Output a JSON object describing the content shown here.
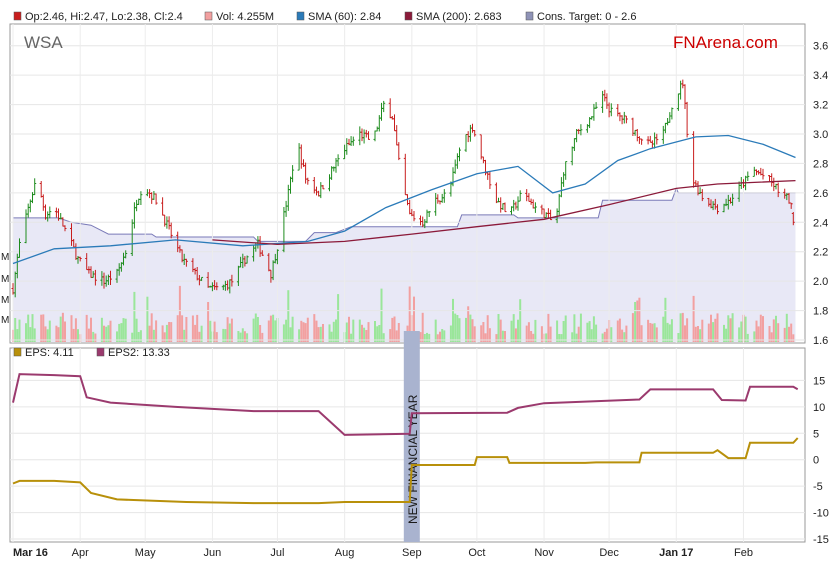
{
  "ticker": "WSA",
  "brand": "FNArena.com",
  "vertical_annotation": "NEW FINANCIAL YEAR",
  "colors": {
    "up": "#1e8c1e",
    "down": "#c81e1e",
    "sma60": "#2b7bb9",
    "sma200": "#8b1a3a",
    "target_fill": "#e8e8f6",
    "target_line": "#7a7ab8",
    "eps": "#b8900a",
    "eps2": "#9b3a6e",
    "brand": "#cc0000",
    "vol_up": "#9ae69a",
    "vol_down": "#f2a0a0",
    "nfy_band": "#a9b3cf"
  },
  "legend_top": [
    {
      "swatch": "#c81e1e",
      "text": "Op:2.46, Hi:2.47, Lo:2.38, Cl:2.4"
    },
    {
      "swatch": "#f2a0a0",
      "text": "Vol: 4.255M"
    },
    {
      "swatch": "#2b7bb9",
      "text": "SMA (60): 2.84"
    },
    {
      "swatch": "#8b1a3a",
      "text": "SMA (200): 2.683"
    },
    {
      "swatch": "#8f93b7",
      "text": "Cons. Target: 0 - 2.6"
    }
  ],
  "legend_bottom": [
    {
      "swatch": "#b8900a",
      "text": "EPS: 4.11"
    },
    {
      "swatch": "#9b3a6e",
      "text": "EPS2: 13.33"
    }
  ],
  "vol_axis_labels": [
    "M",
    "M",
    "M",
    "M"
  ],
  "chart_data": [
    {
      "type": "candlestick",
      "title": "WSA",
      "x_range": [
        "2016-03-01",
        "2017-02-28"
      ],
      "ylim": [
        1.6,
        3.7
      ],
      "y_ticks": [
        "1.6",
        "1.8",
        "2.0",
        "2.2",
        "2.4",
        "2.6",
        "2.8",
        "3.0",
        "3.2",
        "3.4",
        "3.6"
      ],
      "x_tick_labels": [
        "Mar 16",
        "Apr",
        "May",
        "Jun",
        "Jul",
        "Aug",
        "Sep",
        "Oct",
        "Nov",
        "Dec",
        "Jan 17",
        "Feb"
      ],
      "x_tick_dates": [
        "2016-03-01",
        "2016-04-01",
        "2016-05-01",
        "2016-06-01",
        "2016-07-01",
        "2016-08-01",
        "2016-09-01",
        "2016-10-01",
        "2016-11-01",
        "2016-12-01",
        "2017-01-01",
        "2017-02-01"
      ],
      "close_path": [
        [
          "2016-03-01",
          1.95
        ],
        [
          "2016-03-04",
          2.25
        ],
        [
          "2016-03-09",
          2.55
        ],
        [
          "2016-03-12",
          2.7
        ],
        [
          "2016-03-16",
          2.45
        ],
        [
          "2016-03-20",
          2.5
        ],
        [
          "2016-03-25",
          2.35
        ],
        [
          "2016-03-31",
          2.15
        ],
        [
          "2016-04-05",
          2.05
        ],
        [
          "2016-04-12",
          2.0
        ],
        [
          "2016-04-18",
          2.05
        ],
        [
          "2016-04-22",
          2.2
        ],
        [
          "2016-04-27",
          2.55
        ],
        [
          "2016-04-30",
          2.65
        ],
        [
          "2016-05-06",
          2.55
        ],
        [
          "2016-05-12",
          2.35
        ],
        [
          "2016-05-18",
          2.15
        ],
        [
          "2016-05-24",
          2.05
        ],
        [
          "2016-05-30",
          1.95
        ],
        [
          "2016-06-05",
          1.95
        ],
        [
          "2016-06-10",
          2.0
        ],
        [
          "2016-06-16",
          2.15
        ],
        [
          "2016-06-22",
          2.25
        ],
        [
          "2016-06-28",
          2.05
        ],
        [
          "2016-07-02",
          2.3
        ],
        [
          "2016-07-06",
          2.6
        ],
        [
          "2016-07-10",
          2.95
        ],
        [
          "2016-07-14",
          2.7
        ],
        [
          "2016-07-20",
          2.6
        ],
        [
          "2016-07-26",
          2.75
        ],
        [
          "2016-08-01",
          2.9
        ],
        [
          "2016-08-08",
          3.0
        ],
        [
          "2016-08-14",
          2.95
        ],
        [
          "2016-08-19",
          3.2
        ],
        [
          "2016-08-23",
          3.12
        ],
        [
          "2016-08-27",
          2.7
        ],
        [
          "2016-08-31",
          2.45
        ],
        [
          "2016-09-06",
          2.4
        ],
        [
          "2016-09-12",
          2.55
        ],
        [
          "2016-09-18",
          2.6
        ],
        [
          "2016-09-24",
          2.95
        ],
        [
          "2016-09-29",
          3.05
        ],
        [
          "2016-10-04",
          2.8
        ],
        [
          "2016-10-10",
          2.55
        ],
        [
          "2016-10-16",
          2.45
        ],
        [
          "2016-10-22",
          2.6
        ],
        [
          "2016-10-28",
          2.5
        ],
        [
          "2016-11-02",
          2.45
        ],
        [
          "2016-11-06",
          2.38
        ],
        [
          "2016-11-10",
          2.75
        ],
        [
          "2016-11-16",
          3.0
        ],
        [
          "2016-11-22",
          3.1
        ],
        [
          "2016-11-28",
          3.25
        ],
        [
          "2016-12-02",
          3.15
        ],
        [
          "2016-12-08",
          3.1
        ],
        [
          "2016-12-14",
          3.0
        ],
        [
          "2016-12-20",
          2.92
        ],
        [
          "2016-12-26",
          3.0
        ],
        [
          "2016-12-30",
          3.2
        ],
        [
          "2017-01-04",
          3.35
        ],
        [
          "2017-01-08",
          2.7
        ],
        [
          "2017-01-14",
          2.55
        ],
        [
          "2017-01-20",
          2.5
        ],
        [
          "2017-01-26",
          2.55
        ],
        [
          "2017-01-31",
          2.65
        ],
        [
          "2017-02-06",
          2.75
        ],
        [
          "2017-02-12",
          2.7
        ],
        [
          "2017-02-18",
          2.6
        ],
        [
          "2017-02-22",
          2.55
        ],
        [
          "2017-02-25",
          2.4
        ]
      ],
      "last_bar": {
        "open": 2.46,
        "high": 2.47,
        "low": 2.38,
        "close": 2.4,
        "volume_m": 4.255
      },
      "series": [
        {
          "name": "SMA (60)",
          "values": [
            [
              "2016-03-01",
              2.12
            ],
            [
              "2016-03-20",
              2.22
            ],
            [
              "2016-04-15",
              2.24
            ],
            [
              "2016-05-15",
              2.28
            ],
            [
              "2016-06-15",
              2.24
            ],
            [
              "2016-07-15",
              2.27
            ],
            [
              "2016-08-01",
              2.34
            ],
            [
              "2016-08-20",
              2.5
            ],
            [
              "2016-09-10",
              2.62
            ],
            [
              "2016-10-01",
              2.73
            ],
            [
              "2016-10-20",
              2.78
            ],
            [
              "2016-11-05",
              2.6
            ],
            [
              "2016-11-20",
              2.66
            ],
            [
              "2016-12-05",
              2.82
            ],
            [
              "2016-12-20",
              2.9
            ],
            [
              "2017-01-10",
              2.98
            ],
            [
              "2017-01-25",
              2.99
            ],
            [
              "2017-02-10",
              2.93
            ],
            [
              "2017-02-25",
              2.84
            ]
          ]
        },
        {
          "name": "SMA (200)",
          "values": [
            [
              "2016-06-01",
              2.28
            ],
            [
              "2016-07-01",
              2.25
            ],
            [
              "2016-08-01",
              2.27
            ],
            [
              "2016-09-01",
              2.32
            ],
            [
              "2016-10-01",
              2.37
            ],
            [
              "2016-11-01",
              2.42
            ],
            [
              "2016-12-01",
              2.52
            ],
            [
              "2017-01-01",
              2.63
            ],
            [
              "2017-01-20",
              2.66
            ],
            [
              "2017-02-25",
              2.683
            ]
          ]
        },
        {
          "name": "Cons. Target",
          "upper_step": [
            [
              "2016-03-01",
              2.43
            ],
            [
              "2016-03-22",
              2.43
            ],
            [
              "2016-03-28",
              2.4
            ],
            [
              "2016-04-06",
              2.38
            ],
            [
              "2016-04-14",
              2.32
            ],
            [
              "2016-05-04",
              2.32
            ],
            [
              "2016-05-06",
              2.3
            ],
            [
              "2016-06-20",
              2.3
            ],
            [
              "2016-06-22",
              2.27
            ],
            [
              "2016-07-14",
              2.27
            ],
            [
              "2016-07-18",
              2.33
            ],
            [
              "2016-07-28",
              2.33
            ],
            [
              "2016-08-04",
              2.37
            ],
            [
              "2016-09-22",
              2.37
            ],
            [
              "2016-09-24",
              2.45
            ],
            [
              "2016-10-18",
              2.45
            ],
            [
              "2016-10-20",
              2.43
            ],
            [
              "2016-11-26",
              2.43
            ],
            [
              "2016-11-28",
              2.55
            ],
            [
              "2016-12-30",
              2.55
            ],
            [
              "2017-01-01",
              2.63
            ],
            [
              "2017-01-02",
              2.6
            ],
            [
              "2017-02-25",
              2.6
            ]
          ],
          "lower": 0,
          "upper": 2.6
        }
      ],
      "volume_ylim": [
        0,
        2.5
      ]
    },
    {
      "type": "line",
      "ylim": [
        -15,
        20
      ],
      "y_ticks": [
        "-15",
        "-10",
        "-5",
        "0",
        "5",
        "10",
        "15"
      ],
      "series": [
        {
          "name": "EPS",
          "values": [
            [
              "2016-03-01",
              -4.5
            ],
            [
              "2016-03-04",
              -4.0
            ],
            [
              "2016-03-20",
              -4.0
            ],
            [
              "2016-04-01",
              -4.3
            ],
            [
              "2016-04-06",
              -6.3
            ],
            [
              "2016-04-18",
              -7.5
            ],
            [
              "2016-05-20",
              -8.0
            ],
            [
              "2016-06-20",
              -8.2
            ],
            [
              "2016-07-20",
              -8.2
            ],
            [
              "2016-08-01",
              -8.0
            ],
            [
              "2016-08-31",
              -8.0
            ],
            [
              "2016-09-01",
              -1.0
            ],
            [
              "2016-09-30",
              -1.0
            ],
            [
              "2016-10-01",
              0.5
            ],
            [
              "2016-10-15",
              0.5
            ],
            [
              "2016-10-16",
              -0.6
            ],
            [
              "2016-11-20",
              -0.6
            ],
            [
              "2016-11-25",
              -0.5
            ],
            [
              "2016-12-15",
              -0.5
            ],
            [
              "2016-12-16",
              1.3
            ],
            [
              "2017-01-18",
              1.3
            ],
            [
              "2017-01-20",
              1.8
            ],
            [
              "2017-01-25",
              0.3
            ],
            [
              "2017-02-02",
              0.3
            ],
            [
              "2017-02-04",
              3.2
            ],
            [
              "2017-02-24",
              3.2
            ],
            [
              "2017-02-26",
              4.11
            ]
          ]
        },
        {
          "name": "EPS2",
          "values": [
            [
              "2016-03-01",
              10.8
            ],
            [
              "2016-03-04",
              16.2
            ],
            [
              "2016-03-20",
              16.0
            ],
            [
              "2016-04-01",
              15.8
            ],
            [
              "2016-04-04",
              11.8
            ],
            [
              "2016-04-15",
              10.8
            ],
            [
              "2016-05-15",
              10.0
            ],
            [
              "2016-06-20",
              9.2
            ],
            [
              "2016-07-20",
              9.2
            ],
            [
              "2016-08-01",
              4.7
            ],
            [
              "2016-08-31",
              4.9
            ],
            [
              "2016-09-01",
              8.8
            ],
            [
              "2016-10-15",
              8.9
            ],
            [
              "2016-10-20",
              9.8
            ],
            [
              "2016-11-01",
              10.7
            ],
            [
              "2016-12-15",
              11.4
            ],
            [
              "2016-12-20",
              13.3
            ],
            [
              "2017-01-18",
              13.3
            ],
            [
              "2017-01-22",
              11.3
            ],
            [
              "2017-02-02",
              11.2
            ],
            [
              "2017-02-04",
              13.8
            ],
            [
              "2017-02-24",
              13.8
            ],
            [
              "2017-02-26",
              13.33
            ]
          ]
        }
      ]
    }
  ]
}
